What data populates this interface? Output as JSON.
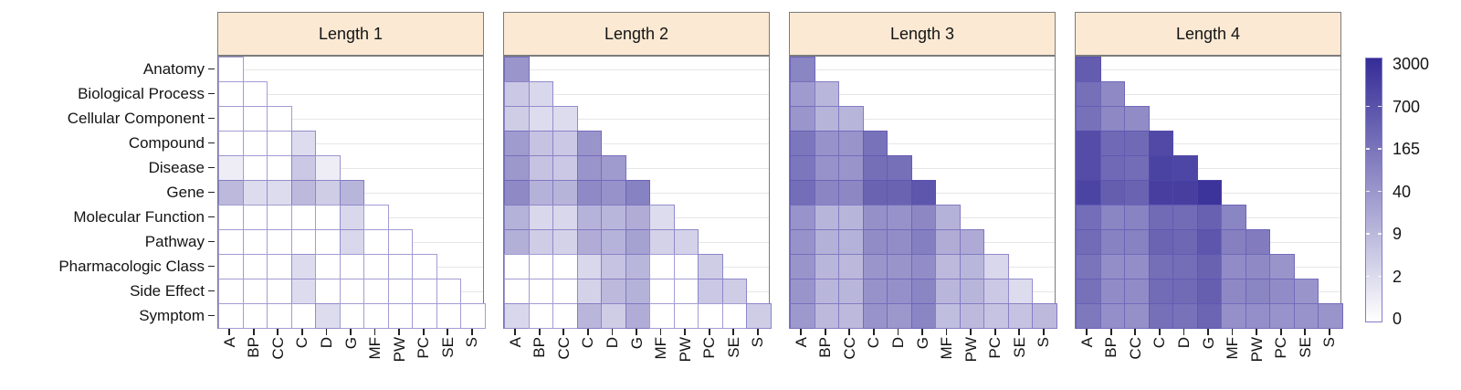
{
  "chart_data": {
    "type": "heatmap",
    "description": "Faceted lower-triangular heatmaps of counts by metanode pair, one facet per path length",
    "facets": [
      "Length 1",
      "Length 2",
      "Length 3",
      "Length 4"
    ],
    "rows": [
      "Anatomy",
      "Biological Process",
      "Cellular Component",
      "Compound",
      "Disease",
      "Gene",
      "Molecular Function",
      "Pathway",
      "Pharmacologic Class",
      "Side Effect",
      "Symptom"
    ],
    "cols": [
      "A",
      "BP",
      "CC",
      "C",
      "D",
      "G",
      "MF",
      "PW",
      "PC",
      "SE",
      "S"
    ],
    "legend": {
      "tick_labels": [
        "3000",
        "700",
        "165",
        "40",
        "9",
        "2",
        "0"
      ],
      "anchors": [
        0,
        2,
        9,
        40,
        165,
        700,
        3000
      ],
      "scale": "log-like gradient, white (0) to dark blue-purple (3000)",
      "low_color": "#FFFFFF",
      "high_color": "#352C97",
      "position": "right"
    },
    "panels": [
      {
        "title": "Length 1",
        "values": [
          [
            0
          ],
          [
            0,
            0
          ],
          [
            0,
            0,
            0
          ],
          [
            0,
            0,
            0,
            2
          ],
          [
            1,
            0,
            0,
            6,
            1
          ],
          [
            9,
            2,
            2,
            9,
            5,
            12
          ],
          [
            0,
            0,
            0,
            0,
            0,
            3,
            0
          ],
          [
            0,
            0,
            0,
            0,
            0,
            3,
            0,
            0
          ],
          [
            0,
            0,
            0,
            2,
            0,
            0,
            0,
            0,
            0
          ],
          [
            0,
            0,
            0,
            2,
            0,
            0,
            0,
            0,
            0,
            0
          ],
          [
            0,
            0,
            0,
            0,
            2,
            0,
            0,
            0,
            0,
            0,
            0
          ]
        ]
      },
      {
        "title": "Length 2",
        "values": [
          [
            40
          ],
          [
            6,
            3
          ],
          [
            5,
            2,
            2
          ],
          [
            35,
            7,
            6,
            45
          ],
          [
            38,
            7,
            6,
            45,
            35
          ],
          [
            80,
            15,
            13,
            80,
            50,
            110
          ],
          [
            15,
            3,
            3,
            14,
            11,
            20,
            2
          ],
          [
            17,
            5,
            4,
            20,
            14,
            30,
            4,
            4
          ],
          [
            0,
            0,
            0,
            3,
            7,
            11,
            0,
            0,
            5
          ],
          [
            0,
            0,
            0,
            4,
            9,
            15,
            0,
            0,
            6,
            5
          ],
          [
            3,
            0,
            0,
            11,
            5,
            20,
            0,
            0,
            0,
            0,
            5
          ]
        ]
      },
      {
        "title": "Length 3",
        "values": [
          [
            100
          ],
          [
            35,
            11
          ],
          [
            40,
            13,
            12
          ],
          [
            150,
            50,
            45,
            170
          ],
          [
            150,
            50,
            45,
            220,
            200
          ],
          [
            230,
            95,
            90,
            400,
            400,
            600
          ],
          [
            48,
            12,
            12,
            60,
            50,
            90,
            15
          ],
          [
            50,
            16,
            15,
            75,
            70,
            120,
            20,
            22
          ],
          [
            42,
            11,
            10,
            40,
            45,
            70,
            9,
            11,
            3
          ],
          [
            42,
            11,
            11,
            50,
            58,
            100,
            11,
            12,
            6,
            2
          ],
          [
            37,
            9,
            9,
            48,
            38,
            100,
            8,
            9,
            7,
            7,
            9
          ]
        ]
      },
      {
        "title": "Length 4",
        "values": [
          [
            500
          ],
          [
            200,
            80
          ],
          [
            190,
            85,
            75
          ],
          [
            900,
            300,
            300,
            1100
          ],
          [
            900,
            300,
            250,
            1500,
            1300
          ],
          [
            1400,
            480,
            400,
            1800,
            1800,
            2500
          ],
          [
            230,
            100,
            105,
            280,
            260,
            430,
            100
          ],
          [
            270,
            110,
            110,
            380,
            340,
            600,
            115,
            130
          ],
          [
            160,
            65,
            65,
            220,
            230,
            420,
            72,
            80,
            45
          ],
          [
            190,
            72,
            72,
            265,
            280,
            460,
            85,
            98,
            72,
            42
          ],
          [
            145,
            62,
            60,
            205,
            165,
            370,
            58,
            62,
            48,
            48,
            45
          ]
        ]
      }
    ],
    "colors": {
      "facet_header_bg": "#FBE9D3",
      "panel_border": "#7C7C7C",
      "tile_border": "rgba(86,76,176,0.55)",
      "gridline": "#E6E6E6",
      "axis_text": "#141414"
    }
  }
}
